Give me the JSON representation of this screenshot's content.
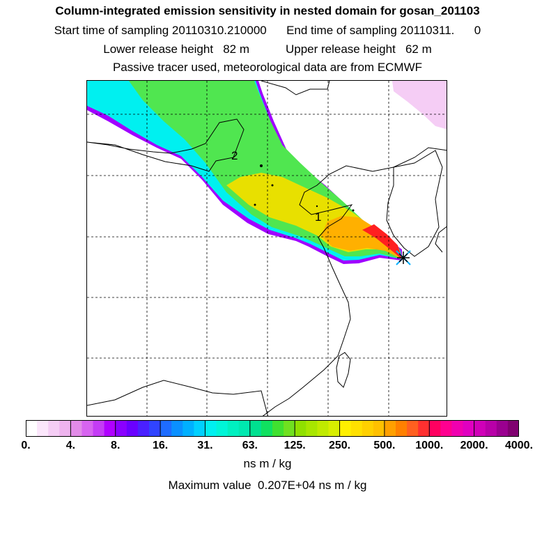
{
  "header": {
    "title": "Column-integrated emission sensitivity in nested domain for gosan_201103",
    "line1": "Start time of sampling 20110310.210000      End time of sampling 20110311.      0",
    "line2": "Lower release height   82 m           Upper release height   62 m",
    "line3": "Passive tracer used, meteorological data are from ECMWF"
  },
  "map": {
    "labels": [
      {
        "text": "2",
        "role": "cluster-label"
      },
      {
        "text": "1",
        "role": "cluster-label"
      }
    ],
    "receptor_marker": "star-cross-icon",
    "colors": {
      "plume_outer": "#a000ff",
      "plume_cyan": "#00f0f0",
      "plume_green": "#50e650",
      "plume_yellow": "#e8e000",
      "plume_orange": "#ffb000",
      "plume_red": "#ff2020",
      "pink_patch": "#f5cdf5"
    }
  },
  "colorbar": {
    "tick_labels": [
      "0.",
      "4.",
      "8.",
      "16.",
      "31.",
      "63.",
      "125.",
      "250.",
      "500.",
      "1000.",
      "2000.",
      "4000."
    ],
    "segments": [
      [
        "#ffffff",
        "#fbe6fb",
        "#f5cdf5",
        "#eeb3ee"
      ],
      [
        "#e28be8",
        "#d764f0",
        "#c43cf5",
        "#b000ff"
      ],
      [
        "#8a00ff",
        "#6a00ff",
        "#4a20ff",
        "#3044ff"
      ],
      [
        "#1e6cff",
        "#0a90ff",
        "#00b0ff",
        "#00d0ff"
      ],
      [
        "#00f0f0",
        "#00f5d8",
        "#00f0c0",
        "#00e8b0"
      ],
      [
        "#00e090",
        "#10e060",
        "#40e030",
        "#70e020"
      ],
      [
        "#90e000",
        "#a8e600",
        "#c0ea00",
        "#d8ee00"
      ],
      [
        "#fff000",
        "#ffe000",
        "#ffd000",
        "#ffc000"
      ],
      [
        "#ffa000",
        "#ff8000",
        "#ff6020",
        "#ff3030"
      ],
      [
        "#ff0060",
        "#ff0090",
        "#f000b0",
        "#e000c0"
      ],
      [
        "#d000b8",
        "#b800a8",
        "#9a0090",
        "#800070"
      ]
    ]
  },
  "footer": {
    "unit": "ns m / kg",
    "max_value": "Maximum value  0.207E+04 ns m / kg"
  }
}
